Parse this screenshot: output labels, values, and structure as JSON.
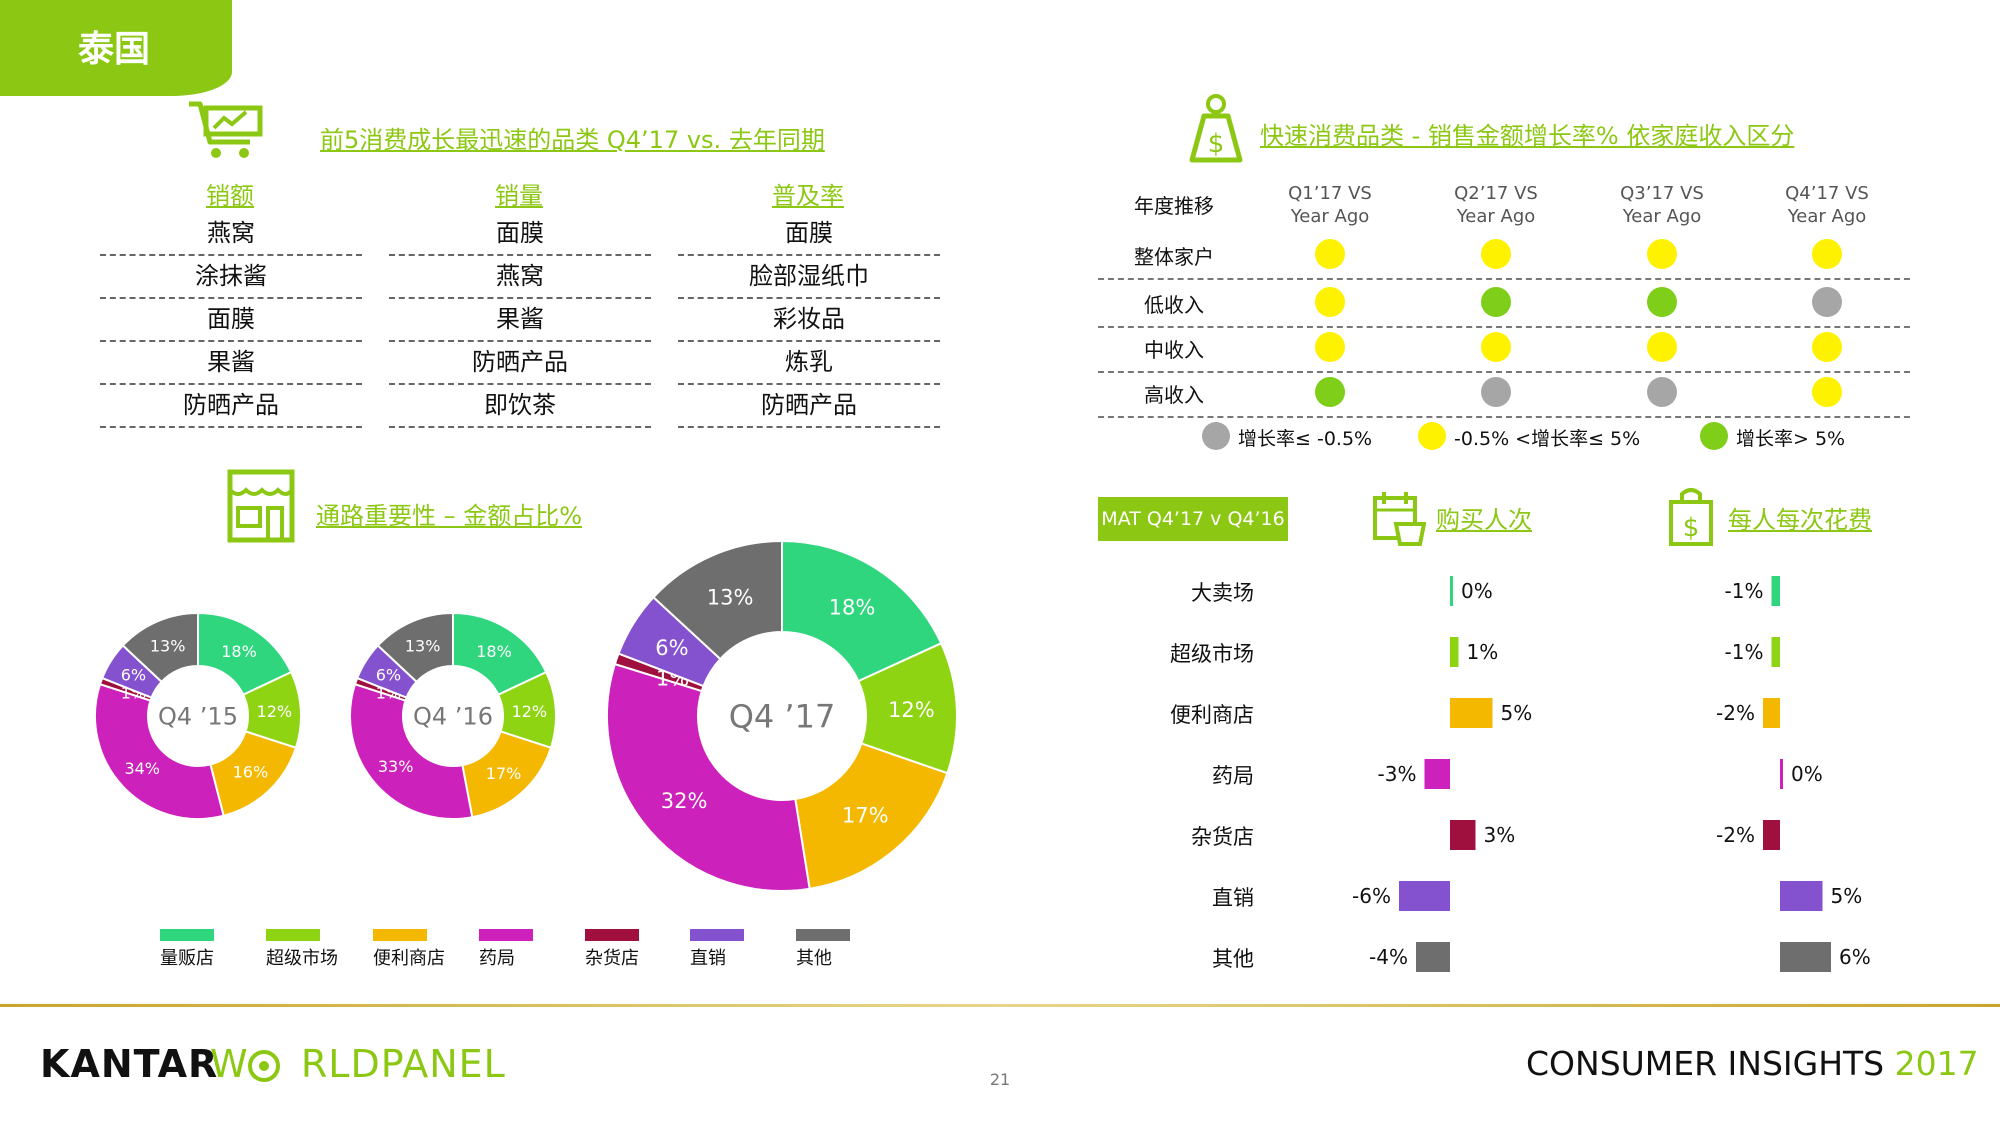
{
  "header": {
    "tab_label": "泰国"
  },
  "top_categories": {
    "title": "前5消费成长最迅速的品类 Q4’17  vs.  去年同期",
    "columns": [
      {
        "header": "销额",
        "items": [
          "燕窝",
          "涂抹酱",
          "面膜",
          "果酱",
          "防晒产品"
        ]
      },
      {
        "header": "销量",
        "items": [
          "面膜",
          "燕窝",
          "果酱",
          "防晒产品",
          "即饮茶"
        ]
      },
      {
        "header": "普及率",
        "items": [
          "面膜",
          "脸部湿纸巾",
          "彩妆品",
          "炼乳",
          "防晒产品"
        ]
      }
    ]
  },
  "channel_share": {
    "title": "通路重要性 – 金额占比%",
    "legend": [
      "量贩店",
      "超级市场",
      "便利商店",
      "药局",
      "杂货店",
      "直销",
      "其他"
    ],
    "colors": [
      "#2fd67e",
      "#8fd413",
      "#f5b800",
      "#cc22bb",
      "#a0103f",
      "#8552cf",
      "#6e6e6e"
    ]
  },
  "income_growth": {
    "title": "快速消费品类 - 销售金额增长率% 依家庭收入区分",
    "corner_label": "年度推移",
    "quarters": [
      {
        "l1": "Q1’17 VS",
        "l2": "Year Ago"
      },
      {
        "l1": "Q2’17 VS",
        "l2": "Year Ago"
      },
      {
        "l1": "Q3’17 VS",
        "l2": "Year Ago"
      },
      {
        "l1": "Q4’17 VS",
        "l2": "Year Ago"
      }
    ],
    "rows": [
      {
        "label": "整体家户",
        "status": [
          "mid",
          "mid",
          "mid",
          "mid"
        ]
      },
      {
        "label": "低收入",
        "status": [
          "mid",
          "high",
          "high",
          "low"
        ]
      },
      {
        "label": "中收入",
        "status": [
          "mid",
          "mid",
          "mid",
          "mid"
        ]
      },
      {
        "label": "高收入",
        "status": [
          "high",
          "low",
          "low",
          "mid"
        ]
      }
    ],
    "status_colors": {
      "low": "#a6a6a6",
      "mid": "#fff200",
      "high": "#7fce1a"
    },
    "legend": [
      {
        "key": "low",
        "text": "增长率≤ -0.5%"
      },
      {
        "key": "mid",
        "text": "-0.5% <增长率≤  5%"
      },
      {
        "key": "high",
        "text": "增长率> 5%"
      }
    ]
  },
  "mat": {
    "badge": "MAT Q4’17 v Q4’16",
    "trips_title": "购买人次",
    "spend_title": "每人每次花费",
    "channels": [
      "大卖场",
      "超级市场",
      "便利商店",
      "药局",
      "杂货店",
      "直销",
      "其他"
    ]
  },
  "chart_data": [
    {
      "type": "pie",
      "title": "Q4 ’15",
      "categories": [
        "量贩店",
        "超级市场",
        "便利商店",
        "药局",
        "杂货店",
        "直销",
        "其他"
      ],
      "values": [
        18,
        12,
        16,
        34,
        1,
        6,
        13
      ],
      "labels": [
        "18%",
        "12%",
        "16%",
        "34%",
        "1%",
        "6%",
        "13%"
      ]
    },
    {
      "type": "pie",
      "title": "Q4 ’16",
      "categories": [
        "量贩店",
        "超级市场",
        "便利商店",
        "药局",
        "杂货店",
        "直销",
        "其他"
      ],
      "values": [
        18,
        12,
        17,
        33,
        1,
        6,
        13
      ],
      "labels": [
        "18%",
        "12%",
        "17%",
        "33%",
        "1%",
        "6%",
        "13%"
      ]
    },
    {
      "type": "pie",
      "title": "Q4 ’17",
      "categories": [
        "量贩店",
        "超级市场",
        "便利商店",
        "药局",
        "杂货店",
        "直销",
        "其他"
      ],
      "values": [
        18,
        12,
        17,
        32,
        1,
        6,
        13
      ],
      "labels": [
        "18%",
        "12%",
        "17%",
        "32%",
        "1%",
        "6%",
        "13%"
      ]
    },
    {
      "type": "bar",
      "title": "购买人次",
      "categories": [
        "大卖场",
        "超级市场",
        "便利商店",
        "药局",
        "杂货店",
        "直销",
        "其他"
      ],
      "values": [
        0,
        1,
        5,
        -3,
        3,
        -6,
        -4
      ],
      "labels": [
        "0%",
        "1%",
        "5%",
        "-3%",
        "3%",
        "-6%",
        "-4%"
      ]
    },
    {
      "type": "bar",
      "title": "每人每次花费",
      "categories": [
        "大卖场",
        "超级市场",
        "便利商店",
        "药局",
        "杂货店",
        "直销",
        "其他"
      ],
      "values": [
        -1,
        -1,
        -2,
        0,
        -2,
        5,
        6
      ],
      "labels": [
        "-1%",
        "-1%",
        "-2%",
        "0%",
        "-2%",
        "5%",
        "6%"
      ]
    }
  ],
  "footer": {
    "brand_left": "KANTAR",
    "brand_right": "W    RLDPANEL",
    "page_number": "21",
    "insights": "CONSUMER INSIGHTS",
    "year": "2017"
  }
}
